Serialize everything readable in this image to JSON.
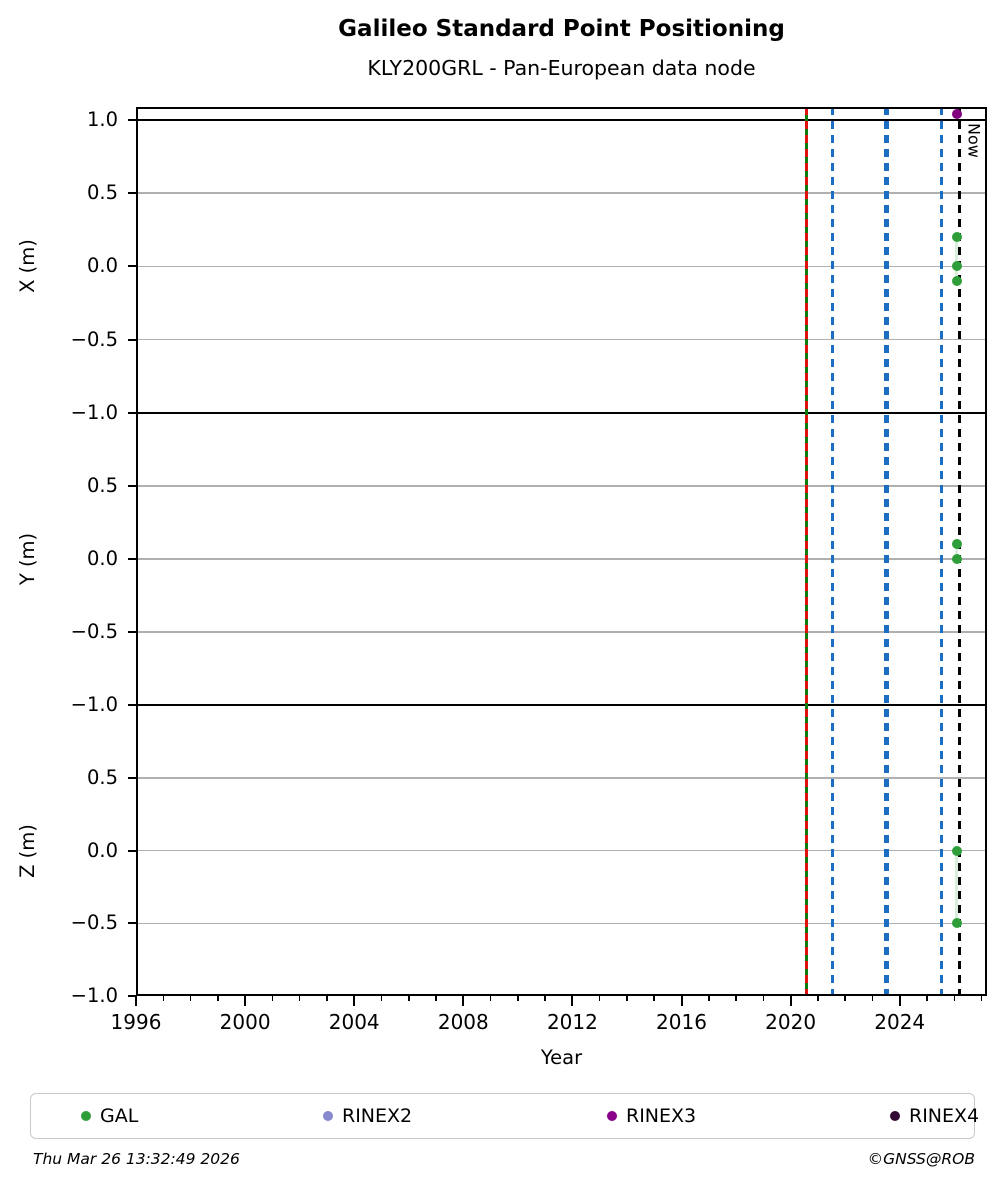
{
  "header": {
    "title": "Galileo Standard Point Positioning",
    "subtitle": "KLY200GRL - Pan-European data node"
  },
  "chart_data": {
    "type": "scatter",
    "title": "Galileo Standard Point Positioning",
    "subtitle": "KLY200GRL - Pan-European data node",
    "xlabel": "Year",
    "xlim": [
      1996,
      2027.2
    ],
    "x_major_ticks": [
      1996,
      2000,
      2004,
      2008,
      2012,
      2016,
      2020,
      2024
    ],
    "x_minor_tick_step": 1,
    "grid": "horizontal-gray",
    "panels": [
      {
        "ylabel": "X (m)",
        "ylim": [
          -1.0,
          1.09
        ],
        "yticks": [
          {
            "v": 1.0,
            "label": "1.0"
          },
          {
            "v": 0.5,
            "label": "0.5"
          },
          {
            "v": 0.0,
            "label": "0.0"
          },
          {
            "v": -0.5,
            "label": "−0.5"
          },
          {
            "v": -1.0,
            "label": "−1.0"
          }
        ],
        "series": [
          {
            "name": "GAL",
            "color": "#2e9e3a",
            "points": [
              {
                "x": 2026.1,
                "y": 0.2
              },
              {
                "x": 2026.1,
                "y": 0.0
              },
              {
                "x": 2026.1,
                "y": -0.1
              }
            ]
          },
          {
            "name": "RINEX3",
            "color": "#800080",
            "points": [
              {
                "x": 2026.1,
                "y": 1.04
              }
            ]
          }
        ]
      },
      {
        "ylabel": "Y (m)",
        "ylim": [
          -1.0,
          1.0
        ],
        "yticks": [
          {
            "v": 1.0,
            "label": ""
          },
          {
            "v": 0.5,
            "label": "0.5"
          },
          {
            "v": 0.0,
            "label": "0.0"
          },
          {
            "v": -0.5,
            "label": "−0.5"
          },
          {
            "v": -1.0,
            "label": "−1.0"
          }
        ],
        "series": [
          {
            "name": "GAL",
            "color": "#2e9e3a",
            "points": [
              {
                "x": 2026.1,
                "y": 0.1
              },
              {
                "x": 2026.1,
                "y": 0.0
              }
            ]
          }
        ]
      },
      {
        "ylabel": "Z (m)",
        "ylim": [
          -1.0,
          1.0
        ],
        "yticks": [
          {
            "v": 1.0,
            "label": ""
          },
          {
            "v": 0.5,
            "label": "0.5"
          },
          {
            "v": 0.0,
            "label": "0.0"
          },
          {
            "v": -0.5,
            "label": "−0.5"
          },
          {
            "v": -1.0,
            "label": "−1.0"
          }
        ],
        "series": [
          {
            "name": "GAL",
            "color": "#2e9e3a",
            "points": [
              {
                "x": 2026.1,
                "y": 0.0
              },
              {
                "x": 2026.1,
                "y": -0.5
              }
            ]
          }
        ]
      }
    ],
    "event_lines": [
      {
        "year": 2020.6,
        "color": "#0a7d0a",
        "style": "solid",
        "width": "thin"
      },
      {
        "year": 2020.6,
        "color": "#e01010",
        "style": "dashed",
        "width": "thin"
      },
      {
        "year": 2021.55,
        "color": "#1b6ec2",
        "style": "dashed",
        "width": "thin"
      },
      {
        "year": 2023.5,
        "color": "#1b6ec2",
        "style": "dashed",
        "width": "thick"
      },
      {
        "year": 2025.55,
        "color": "#1b6ec2",
        "style": "dashed",
        "width": "thin"
      },
      {
        "year": 2026.2,
        "color": "#000000",
        "style": "dashed",
        "width": "thin",
        "label": "Now"
      }
    ],
    "legend": {
      "position": "bottom",
      "entries": [
        {
          "label": "GAL",
          "color": "#2e9e3a"
        },
        {
          "label": "RINEX2",
          "color": "#8888cc"
        },
        {
          "label": "RINEX3",
          "color": "#8b008b"
        },
        {
          "label": "RINEX4",
          "color": "#330a33"
        }
      ]
    }
  },
  "footer": {
    "timestamp": "Thu Mar 26 13:32:49 2026",
    "credit": "©GNSS@ROB"
  }
}
